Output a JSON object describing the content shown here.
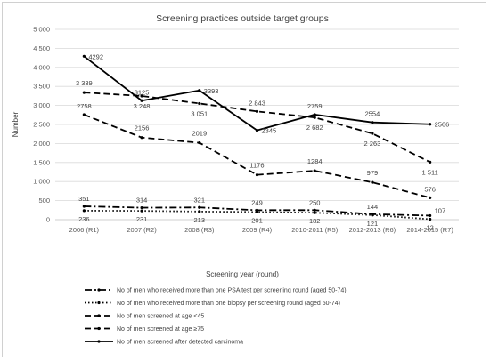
{
  "chart_data": {
    "type": "line",
    "title": "Screening practices outside target groups",
    "xlabel": "Screening year (round)",
    "ylabel": "Number",
    "ylim": [
      0,
      5000
    ],
    "yticks": [
      "0",
      "500",
      "1 000",
      "1 500",
      "2 000",
      "2 500",
      "3 000",
      "3 500",
      "4 000",
      "4 500",
      "5 000"
    ],
    "grid": true,
    "legend_position": "bottom",
    "categories": [
      "2006 (R1)",
      "2007 (R2)",
      "2008 (R3)",
      "2009 (R4)",
      "2010-2011 (R5)",
      "2012-2013 (R6)",
      "2014-2015 (R7)"
    ],
    "series": [
      {
        "name": "No of men who received more than one PSA test per screening round (aged 50-74)",
        "style": "dashdot",
        "values": [
          351,
          314,
          321,
          249,
          250,
          144,
          107
        ],
        "labels": [
          "351",
          "314",
          "321",
          "249",
          "250",
          "144",
          "107"
        ]
      },
      {
        "name": "No of men who received more than one biopsy per screening round (aged 50-74)",
        "style": "dotted",
        "values": [
          236,
          231,
          213,
          201,
          182,
          121,
          12
        ],
        "labels": [
          "236",
          "231",
          "213",
          "201",
          "182",
          "121",
          "12"
        ]
      },
      {
        "name": "No of men screened at age <45",
        "style": "longdash",
        "values": [
          2758,
          2156,
          2019,
          1176,
          1284,
          979,
          576
        ],
        "labels": [
          "2758",
          "2156",
          "2019",
          "1176",
          "1284",
          "979",
          "576"
        ]
      },
      {
        "name": "No of men screened at age ≥75",
        "style": "dashed",
        "values": [
          3339,
          3248,
          3051,
          2843,
          2682,
          2263,
          1511
        ],
        "labels": [
          "3 339",
          "3 248",
          "3 051",
          "2 843",
          "2 682",
          "2 263",
          "1 511"
        ]
      },
      {
        "name": "No of men screened after detected carcinoma",
        "style": "solid",
        "values": [
          4292,
          3125,
          3393,
          2345,
          2759,
          2554,
          2506
        ],
        "labels": [
          "4292",
          "3125",
          "3393",
          "2345",
          "2759",
          "2554",
          "2506"
        ]
      }
    ],
    "colors": {
      "line": "#000000",
      "grid": "#d9d9d9",
      "axis": "#bfbfbf"
    }
  }
}
